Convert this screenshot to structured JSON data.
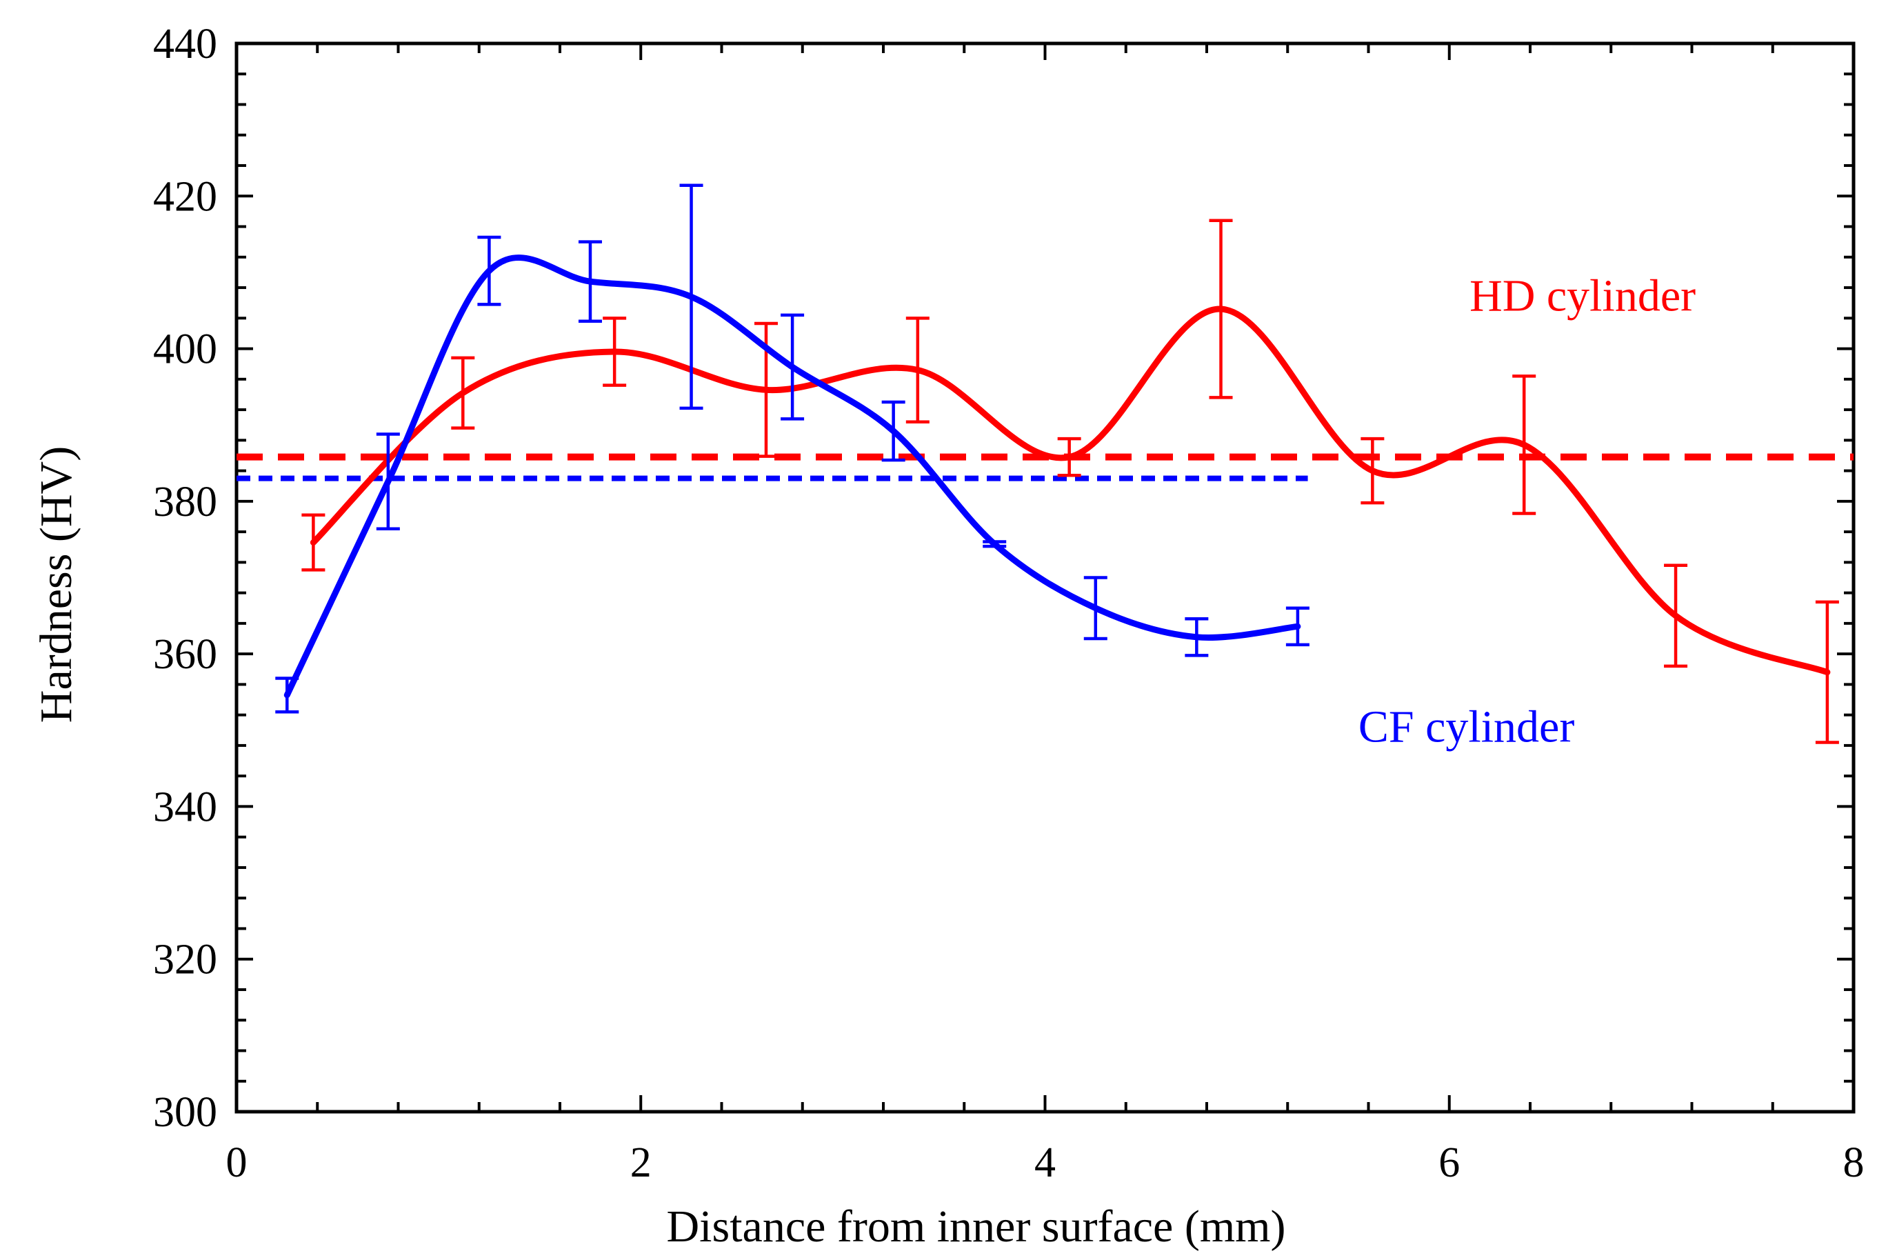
{
  "chart_data": {
    "type": "line",
    "title": "",
    "xlabel": "Distance from inner surface (mm)",
    "ylabel": "Hardness (HV)",
    "xlim": [
      0,
      8
    ],
    "ylim": [
      300,
      440
    ],
    "x_ticks": [
      0,
      2,
      4,
      6,
      8
    ],
    "y_ticks": [
      300,
      320,
      340,
      360,
      380,
      400,
      420,
      440
    ],
    "grid": false,
    "series": [
      {
        "name": "HD cylinder",
        "color": "#ff0000",
        "line_style": "solid smooth",
        "points": [
          {
            "x": 0.38,
            "y": 374.6,
            "err": 3.6
          },
          {
            "x": 1.12,
            "y": 394.2,
            "err": 4.6
          },
          {
            "x": 1.87,
            "y": 399.6,
            "err": 4.4
          },
          {
            "x": 2.62,
            "y": 394.6,
            "err": 8.7
          },
          {
            "x": 3.37,
            "y": 397.2,
            "err": 6.8
          },
          {
            "x": 4.12,
            "y": 385.8,
            "err": 2.4
          },
          {
            "x": 4.87,
            "y": 405.2,
            "err": 11.6
          },
          {
            "x": 5.62,
            "y": 384.0,
            "err": 4.2
          },
          {
            "x": 6.37,
            "y": 387.4,
            "err": 9.0
          },
          {
            "x": 7.12,
            "y": 365.0,
            "err": 6.6
          },
          {
            "x": 7.87,
            "y": 357.6,
            "err": 9.2
          }
        ]
      },
      {
        "name": "CF cylinder",
        "color": "#0000ff",
        "line_style": "solid smooth",
        "points": [
          {
            "x": 0.25,
            "y": 354.6,
            "err": 2.2
          },
          {
            "x": 0.75,
            "y": 382.6,
            "err": 6.2
          },
          {
            "x": 1.25,
            "y": 410.2,
            "err": 4.4
          },
          {
            "x": 1.75,
            "y": 408.8,
            "err": 5.2
          },
          {
            "x": 2.25,
            "y": 406.8,
            "err": 14.6
          },
          {
            "x": 2.75,
            "y": 397.6,
            "err": 6.8
          },
          {
            "x": 3.25,
            "y": 389.2,
            "err": 3.8
          },
          {
            "x": 3.75,
            "y": 374.4,
            "err": 0.3
          },
          {
            "x": 4.25,
            "y": 366.0,
            "err": 4.0
          },
          {
            "x": 4.75,
            "y": 362.2,
            "err": 2.4
          },
          {
            "x": 5.25,
            "y": 363.6,
            "err": 2.4
          }
        ]
      }
    ],
    "reference_lines": [
      {
        "name": "HD cylinder average",
        "y": 385.8,
        "x_range": [
          0,
          8
        ],
        "color": "#ff0000",
        "style": "dashed"
      },
      {
        "name": "CF cylinder average",
        "y": 383.0,
        "x_range": [
          0,
          5.3
        ],
        "color": "#0000ff",
        "style": "short-dashed"
      }
    ],
    "annotations": [
      {
        "text": "HD cylinder",
        "color": "#ff0000",
        "anchor_x": 6.1,
        "anchor_y": 405
      },
      {
        "text": "CF cylinder",
        "color": "#0000ff",
        "anchor_x": 5.55,
        "anchor_y": 348.5
      }
    ]
  }
}
